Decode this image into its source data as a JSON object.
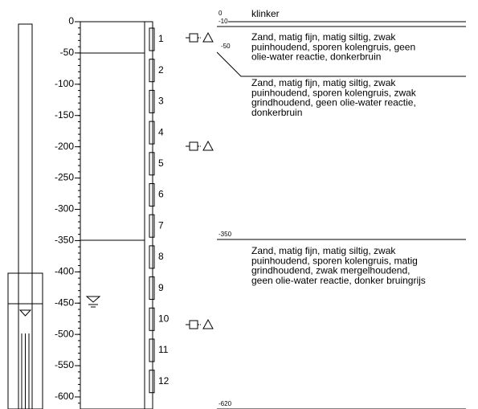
{
  "depth_axis": {
    "ticks": [
      0,
      -50,
      -100,
      -150,
      -200,
      -250,
      -300,
      -350,
      -400,
      -450,
      -500,
      -550,
      -600
    ]
  },
  "samples": [
    "1",
    "2",
    "3",
    "4",
    "5",
    "6",
    "7",
    "8",
    "9",
    "10",
    "11",
    "12"
  ],
  "boundaries": [
    "0",
    "-10",
    "-50",
    "-350",
    "-620"
  ],
  "layers": [
    {
      "lines": [
        "klinker"
      ]
    },
    {
      "lines": [
        "Zand, matig fijn, matig siltig, zwak",
        "puinhoudend, sporen kolengruis, geen",
        "olie-water reactie, donkerbruin"
      ]
    },
    {
      "lines": [
        "Zand, matig fijn, matig siltig, zwak",
        "puinhoudend, sporen kolengruis, zwak",
        "grindhoudend, geen olie-water reactie,",
        "donkerbruin"
      ]
    },
    {
      "lines": [
        "Zand, matig fijn, matig siltig, zwak",
        "puinhoudend, sporen kolengruis, matig",
        "grindhoudend, zwak mergelhoudend,",
        "geen olie-water reactie, donker bruingrijs"
      ]
    }
  ]
}
